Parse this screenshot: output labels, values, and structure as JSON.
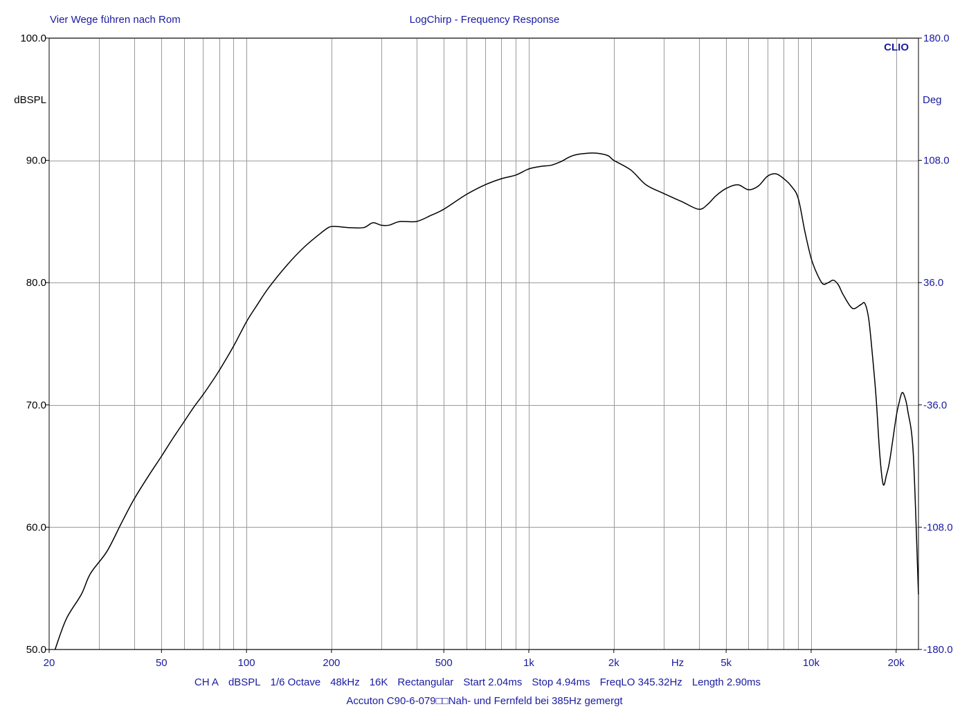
{
  "header": {
    "left_title": "Vier Wege führen nach Rom",
    "center_title": "LogChirp - Frequency Response",
    "brand": "CLIO"
  },
  "axis_units": {
    "left": "dBSPL",
    "right": "Deg",
    "bottom": "Hz"
  },
  "settings_line": [
    "CH A",
    "dBSPL",
    "1/6 Octave",
    "48kHz",
    "16K",
    "Rectangular",
    "Start 2.04ms",
    "Stop 4.94ms",
    "FreqLO 345.32Hz",
    "Length 2.90ms"
  ],
  "footer_note": "Accuton C90-6-079□□Nah- und Fernfeld bei 385Hz gemergt",
  "colors": {
    "text": "#1a1aa0",
    "curve": "#000000",
    "grid": "#9a9a9a",
    "background": "#ffffff"
  },
  "chart_data": {
    "type": "line",
    "title": "LogChirp - Frequency Response",
    "xlabel": "Hz",
    "ylabel": "dBSPL",
    "y2label": "Deg",
    "x_scale": "log",
    "xlim": [
      20,
      24000
    ],
    "ylim": [
      50,
      100
    ],
    "y2lim": [
      -180,
      180
    ],
    "grid": true,
    "x_ticks": [
      {
        "value": 20,
        "label": "20"
      },
      {
        "value": 50,
        "label": "50"
      },
      {
        "value": 100,
        "label": "100"
      },
      {
        "value": 200,
        "label": "200"
      },
      {
        "value": 500,
        "label": "500"
      },
      {
        "value": 1000,
        "label": "1k"
      },
      {
        "value": 2000,
        "label": "2k"
      },
      {
        "value": 5000,
        "label": "5k"
      },
      {
        "value": 10000,
        "label": "10k"
      },
      {
        "value": 20000,
        "label": "20k"
      }
    ],
    "x_grid": [
      30,
      40,
      50,
      60,
      70,
      80,
      90,
      100,
      200,
      300,
      400,
      500,
      600,
      700,
      800,
      900,
      1000,
      2000,
      3000,
      4000,
      5000,
      6000,
      7000,
      8000,
      9000,
      10000,
      20000
    ],
    "y_ticks": [
      {
        "value": 100,
        "label": "100.0"
      },
      {
        "value": 90,
        "label": "90.0"
      },
      {
        "value": 80,
        "label": "80.0"
      },
      {
        "value": 70,
        "label": "70.0"
      },
      {
        "value": 60,
        "label": "60.0"
      },
      {
        "value": 50,
        "label": "50.0"
      }
    ],
    "y2_ticks": [
      {
        "value": 180,
        "label": "180.0"
      },
      {
        "value": 108,
        "label": "108.0"
      },
      {
        "value": 36,
        "label": "36.0"
      },
      {
        "value": -36,
        "label": "-36.0"
      },
      {
        "value": -108,
        "label": "-108.0"
      },
      {
        "value": -180,
        "label": "-180.0"
      }
    ],
    "series": [
      {
        "color": "#000000",
        "points": [
          [
            21,
            50.0
          ],
          [
            23,
            52.5
          ],
          [
            26,
            54.5
          ],
          [
            28,
            56.2
          ],
          [
            32,
            58.0
          ],
          [
            36,
            60.3
          ],
          [
            40,
            62.3
          ],
          [
            45,
            64.2
          ],
          [
            50,
            65.8
          ],
          [
            55,
            67.3
          ],
          [
            60,
            68.6
          ],
          [
            65,
            69.8
          ],
          [
            70,
            70.8
          ],
          [
            75,
            71.8
          ],
          [
            80,
            72.8
          ],
          [
            90,
            74.8
          ],
          [
            100,
            76.8
          ],
          [
            110,
            78.3
          ],
          [
            120,
            79.6
          ],
          [
            140,
            81.5
          ],
          [
            160,
            82.9
          ],
          [
            180,
            83.9
          ],
          [
            195,
            84.5
          ],
          [
            205,
            84.6
          ],
          [
            230,
            84.5
          ],
          [
            260,
            84.5
          ],
          [
            280,
            84.9
          ],
          [
            300,
            84.7
          ],
          [
            320,
            84.7
          ],
          [
            350,
            85.0
          ],
          [
            400,
            85.0
          ],
          [
            450,
            85.5
          ],
          [
            500,
            86.0
          ],
          [
            600,
            87.2
          ],
          [
            700,
            88.0
          ],
          [
            800,
            88.5
          ],
          [
            900,
            88.8
          ],
          [
            1000,
            89.3
          ],
          [
            1100,
            89.5
          ],
          [
            1200,
            89.6
          ],
          [
            1300,
            89.9
          ],
          [
            1400,
            90.3
          ],
          [
            1500,
            90.5
          ],
          [
            1700,
            90.6
          ],
          [
            1900,
            90.4
          ],
          [
            2000,
            90.0
          ],
          [
            2300,
            89.2
          ],
          [
            2600,
            88.0
          ],
          [
            3000,
            87.3
          ],
          [
            3500,
            86.6
          ],
          [
            4000,
            86.0
          ],
          [
            4300,
            86.4
          ],
          [
            4600,
            87.1
          ],
          [
            5000,
            87.7
          ],
          [
            5500,
            88.0
          ],
          [
            6000,
            87.6
          ],
          [
            6500,
            87.9
          ],
          [
            7000,
            88.7
          ],
          [
            7500,
            88.9
          ],
          [
            8000,
            88.5
          ],
          [
            8500,
            87.9
          ],
          [
            9000,
            86.9
          ],
          [
            9500,
            84.2
          ],
          [
            10000,
            82.0
          ],
          [
            10500,
            80.7
          ],
          [
            11000,
            79.9
          ],
          [
            11500,
            80.0
          ],
          [
            12000,
            80.2
          ],
          [
            12500,
            79.8
          ],
          [
            13000,
            79.0
          ],
          [
            14000,
            77.9
          ],
          [
            15000,
            78.2
          ],
          [
            15500,
            78.3
          ],
          [
            16000,
            77.0
          ],
          [
            16500,
            74.0
          ],
          [
            17000,
            70.5
          ],
          [
            17500,
            66.0
          ],
          [
            18000,
            63.5
          ],
          [
            18500,
            64.3
          ],
          [
            19000,
            65.5
          ],
          [
            20000,
            69.0
          ],
          [
            20500,
            70.2
          ],
          [
            21000,
            71.0
          ],
          [
            21500,
            70.6
          ],
          [
            22000,
            69.5
          ],
          [
            23000,
            66.0
          ],
          [
            24000,
            54.5
          ]
        ]
      }
    ]
  }
}
